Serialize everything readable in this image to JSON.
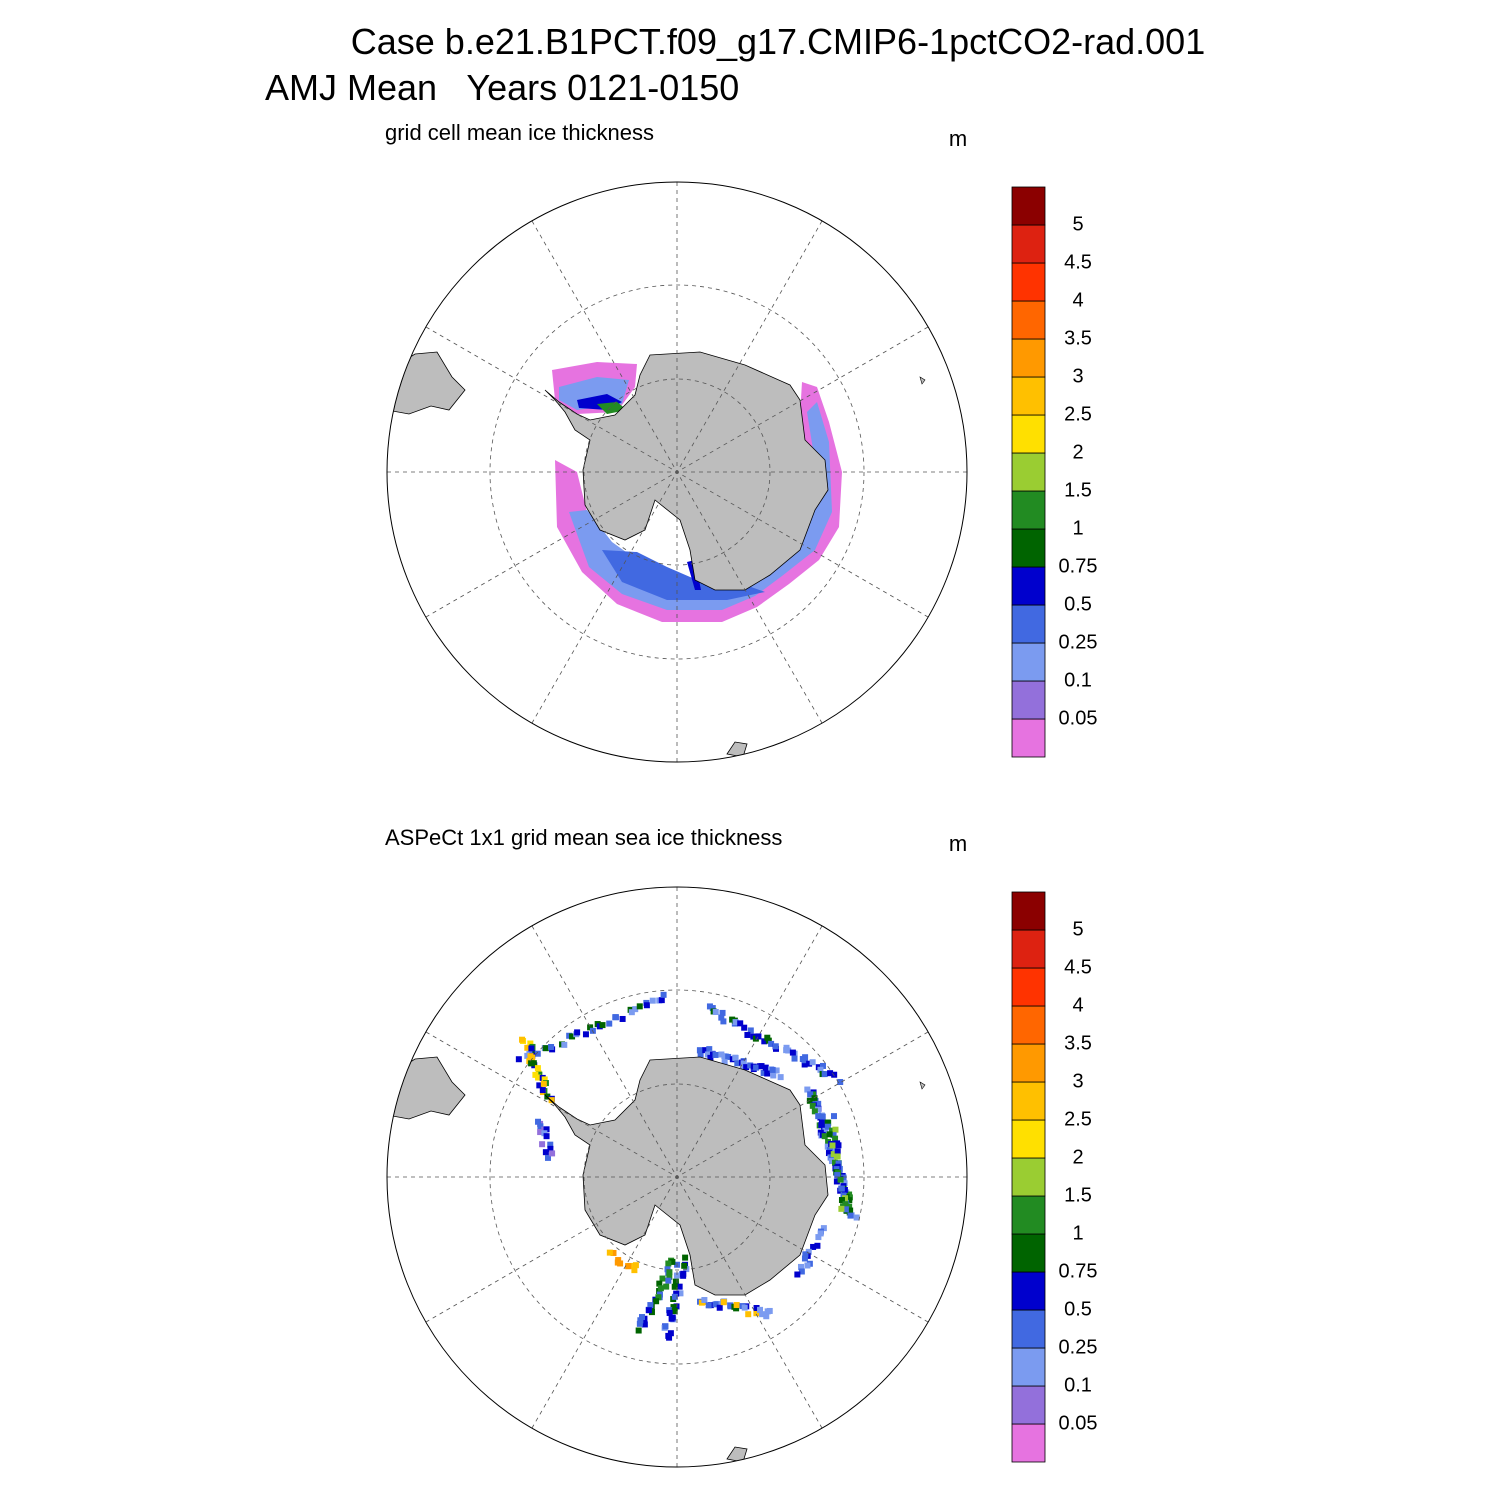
{
  "header": {
    "title_line1": "Case b.e21.B1PCT.f09_g17.CMIP6-1pctCO2-rad.001",
    "title_line2": "AMJ Mean   Years 0121-0150"
  },
  "panels": [
    {
      "title": "grid cell mean ice thickness",
      "units": "m"
    },
    {
      "title": "ASPeCt 1x1 grid mean sea ice thickness",
      "units": "m"
    }
  ],
  "colorbar": {
    "levels": [
      0.05,
      0.1,
      0.25,
      0.5,
      0.75,
      1,
      1.5,
      2,
      2.5,
      3,
      3.5,
      4,
      4.5,
      5
    ],
    "colors": [
      "#e673e0",
      "#9370db",
      "#7b9bf0",
      "#4169e1",
      "#0000cd",
      "#006400",
      "#228b22",
      "#9acd32",
      "#ffe000",
      "#ffc000",
      "#ff9900",
      "#ff6600",
      "#ff3300",
      "#dd2211",
      "#8b0000"
    ]
  }
}
